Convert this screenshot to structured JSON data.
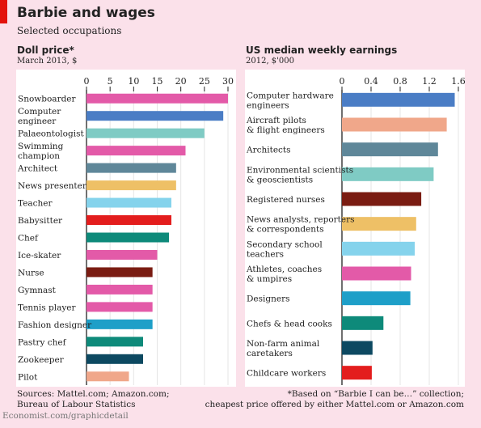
{
  "header": {
    "title": "Barbie and wages",
    "subtitle": "Selected occupations"
  },
  "left": {
    "title": "Doll price*",
    "subtitle": "March 2013, $"
  },
  "right": {
    "title": "US median weekly earnings",
    "subtitle": "2012, $'000"
  },
  "footer": {
    "sources_line1": "Sources: Mattel.com; Amazon.com;",
    "sources_line2": "Bureau of Labour Statistics",
    "note_line1": "*Based on “Barbie I can be…” collection;",
    "note_line2": "cheapest price offered by either Mattel.com or Amazon.com",
    "credit": "Economist.com/graphicdetail"
  },
  "chart_data": [
    {
      "type": "bar",
      "orientation": "horizontal",
      "title": "Doll price*",
      "subtitle": "March 2013, $",
      "xlim": [
        0,
        30
      ],
      "ticks": [
        "0",
        "5",
        "10",
        "15",
        "20",
        "25",
        "30"
      ],
      "tick_values": [
        0,
        5,
        10,
        15,
        20,
        25,
        30
      ],
      "grid": true,
      "categories": [
        [
          "Snowboarder"
        ],
        [
          "Computer",
          "engineer"
        ],
        [
          "Palaeontologist"
        ],
        [
          "Swimming",
          "champion"
        ],
        [
          "Architect"
        ],
        [
          "News presenter"
        ],
        [
          "Teacher"
        ],
        [
          "Babysitter"
        ],
        [
          "Chef"
        ],
        [
          "Ice-skater"
        ],
        [
          "Nurse"
        ],
        [
          "Gymnast"
        ],
        [
          "Tennis player"
        ],
        [
          "Fashion designer"
        ],
        [
          "Pastry chef"
        ],
        [
          "Zookeeper"
        ],
        [
          "Pilot"
        ]
      ],
      "values": [
        30,
        29,
        25,
        21,
        19,
        19,
        18,
        18,
        17.5,
        15,
        14,
        14,
        14,
        14,
        12,
        12,
        9
      ],
      "colors": [
        "#e35aa8",
        "#4a7dc5",
        "#7fcbc4",
        "#e35aa8",
        "#5f8799",
        "#eec066",
        "#85d3ec",
        "#e31d1d",
        "#0e8a7a",
        "#e35aa8",
        "#7a1c12",
        "#e35aa8",
        "#e35aa8",
        "#1e9fc8",
        "#0e8a7a",
        "#0d4961",
        "#f0a78a"
      ]
    },
    {
      "type": "bar",
      "orientation": "horizontal",
      "title": "US median weekly earnings",
      "subtitle": "2012, $'000",
      "xlim": [
        0,
        1.6
      ],
      "ticks": [
        "0",
        "0.4",
        "0.8",
        "1.2",
        "1.6"
      ],
      "tick_values": [
        0,
        0.4,
        0.8,
        1.2,
        1.6
      ],
      "grid": true,
      "categories": [
        [
          "Computer hardware",
          "engineers"
        ],
        [
          "Aircraft pilots",
          "& flight engineers"
        ],
        [
          "Architects"
        ],
        [
          "Environmental scientists",
          "& geoscientists"
        ],
        [
          "Registered nurses"
        ],
        [
          "News analysts, reporters",
          "& correspondents"
        ],
        [
          "Secondary school",
          "teachers"
        ],
        [
          "Athletes, coaches",
          "& umpires"
        ],
        [
          "Designers"
        ],
        [
          "Chefs & head cooks"
        ],
        [
          "Non-farm animal",
          "caretakers"
        ],
        [
          "Childcare workers"
        ]
      ],
      "values": [
        1.55,
        1.44,
        1.32,
        1.26,
        1.09,
        1.02,
        1.0,
        0.95,
        0.94,
        0.57,
        0.42,
        0.41
      ],
      "colors": [
        "#4a7dc5",
        "#f0a78a",
        "#5f8799",
        "#7fcbc4",
        "#7a1c12",
        "#eec066",
        "#85d3ec",
        "#e35aa8",
        "#1e9fc8",
        "#0e8a7a",
        "#0d4961",
        "#e31d1d"
      ]
    }
  ]
}
